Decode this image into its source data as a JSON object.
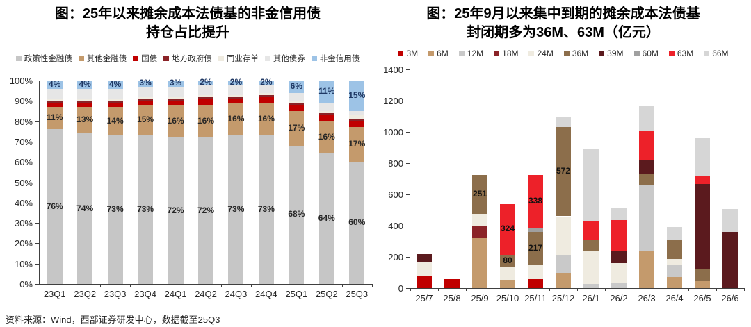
{
  "source_note": "资料来源：Wind，西部证券研发中心，数据截至25Q3",
  "chart_data": [
    {
      "type": "bar",
      "stacked": true,
      "percent": true,
      "title_line1": "图：25年以来摊余成本法债基的非金信用债",
      "title_line2": "持仓占比提升",
      "categories": [
        "23Q1",
        "23Q2",
        "23Q3",
        "23Q4",
        "24Q1",
        "24Q2",
        "24Q3",
        "24Q4",
        "25Q1",
        "25Q2",
        "25Q3"
      ],
      "series": [
        {
          "name": "政策性金融债",
          "color": "#C6C6C6",
          "values": [
            76,
            74,
            73,
            73,
            72,
            72,
            73,
            73,
            68,
            64,
            60
          ]
        },
        {
          "name": "其他金融债",
          "color": "#C49A6C",
          "values": [
            11,
            13,
            14,
            15,
            16,
            16,
            16,
            16,
            17,
            16,
            17
          ]
        },
        {
          "name": "国债",
          "color": "#C00000",
          "values": [
            2,
            2,
            2,
            2,
            2,
            3,
            2,
            3,
            3,
            3,
            3
          ]
        },
        {
          "name": "地方政府债",
          "color": "#8B2328",
          "values": [
            1,
            1,
            1,
            1,
            1,
            1,
            1,
            1,
            1,
            1,
            1
          ]
        },
        {
          "name": "同业存单",
          "color": "#EFEBE0",
          "values": [
            1,
            1,
            1,
            1,
            1,
            1,
            1,
            1,
            1,
            1,
            2
          ]
        },
        {
          "name": "其他债券",
          "color": "#E6E6E6",
          "values": [
            5,
            5,
            5,
            5,
            5,
            5,
            5,
            4,
            4,
            4,
            2
          ]
        },
        {
          "name": "非金信用债",
          "color": "#9DC3E6",
          "values": [
            4,
            4,
            4,
            3,
            3,
            2,
            2,
            2,
            6,
            11,
            15
          ]
        }
      ],
      "label_series": [
        {
          "name": "政策性金融债",
          "color": "#262626"
        },
        {
          "name": "其他金融债",
          "color": "#262626"
        },
        {
          "name": "非金信用债",
          "color": "#1F3864"
        }
      ],
      "xlabel": "",
      "ylabel": "",
      "ylim": [
        0,
        100
      ],
      "ytick_step": 10,
      "ytick_suffix": "%",
      "grid": false,
      "legend_position": "top"
    },
    {
      "type": "bar",
      "stacked": true,
      "percent": false,
      "title_line1": "图：25年9月以来集中到期的摊余成本法债基",
      "title_line2": "封闭期多为36M、63M（亿元）",
      "categories": [
        "25/7",
        "25/8",
        "25/9",
        "25/10",
        "25/11",
        "25/12",
        "26/1",
        "26/2",
        "26/3",
        "26/4",
        "26/5",
        "26/6"
      ],
      "series": [
        {
          "name": "3M",
          "color": "#C00000",
          "values": [
            80,
            60,
            0,
            0,
            60,
            0,
            0,
            0,
            0,
            0,
            0,
            0
          ]
        },
        {
          "name": "6M",
          "color": "#C49A6C",
          "values": [
            0,
            0,
            320,
            50,
            0,
            100,
            0,
            0,
            240,
            70,
            45,
            0
          ]
        },
        {
          "name": "12M",
          "color": "#C9C9C9",
          "values": [
            0,
            0,
            0,
            0,
            0,
            110,
            25,
            35,
            420,
            75,
            0,
            0
          ]
        },
        {
          "name": "18M",
          "color": "#8B2328",
          "values": [
            0,
            0,
            80,
            0,
            0,
            0,
            0,
            0,
            0,
            0,
            0,
            0
          ]
        },
        {
          "name": "24M",
          "color": "#EFEBE0",
          "values": [
            85,
            0,
            75,
            85,
            85,
            250,
            210,
            125,
            0,
            40,
            0,
            0
          ]
        },
        {
          "name": "36M",
          "color": "#8C6E4B",
          "values": [
            0,
            0,
            251,
            80,
            217,
            572,
            70,
            0,
            75,
            120,
            80,
            0
          ]
        },
        {
          "name": "39M",
          "color": "#5B1A1E",
          "values": [
            55,
            0,
            0,
            0,
            0,
            0,
            0,
            75,
            85,
            0,
            540,
            360
          ]
        },
        {
          "name": "60M",
          "color": "#A0A0A0",
          "values": [
            0,
            0,
            0,
            0,
            25,
            0,
            0,
            0,
            0,
            0,
            0,
            0
          ]
        },
        {
          "name": "63M",
          "color": "#ED2129",
          "values": [
            0,
            0,
            0,
            324,
            338,
            0,
            125,
            200,
            190,
            0,
            50,
            0
          ]
        },
        {
          "name": "66M",
          "color": "#D6D6D6",
          "values": [
            0,
            0,
            0,
            0,
            0,
            60,
            460,
            75,
            155,
            85,
            245,
            145
          ]
        }
      ],
      "labels": [
        {
          "category": "25/9",
          "series": "36M",
          "value": 251
        },
        {
          "category": "25/10",
          "series": "36M",
          "value": 80
        },
        {
          "category": "25/10",
          "series": "63M",
          "value": 324
        },
        {
          "category": "25/11",
          "series": "36M",
          "value": 217
        },
        {
          "category": "25/11",
          "series": "63M",
          "value": 338
        },
        {
          "category": "25/12",
          "series": "36M",
          "value": 572
        }
      ],
      "xlabel": "",
      "ylabel": "",
      "ylim": [
        0,
        1400
      ],
      "ytick_step": 200,
      "ytick_suffix": "",
      "grid": false,
      "legend_position": "top"
    }
  ]
}
